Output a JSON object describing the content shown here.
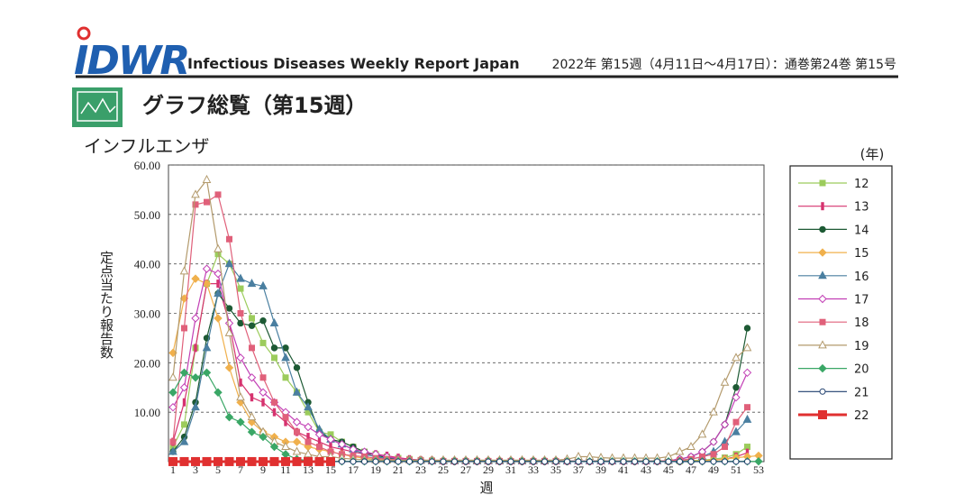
{
  "header": {
    "logo": "IDWR",
    "subtitle": "Infectious Diseases Weekly Report Japan",
    "issue": "2022年 第15週（4月11日～4月17日）：通巻第24巻 第15号"
  },
  "section_title": "グラフ総覧（第15週）",
  "chart_data": {
    "type": "line",
    "title": "インフルエンザ",
    "ylabel": "定点当たり報告数",
    "xlabel": "週",
    "legend_title": "(年)",
    "legend": "right",
    "grid": true,
    "categories": [
      1,
      null,
      3,
      null,
      5,
      null,
      7,
      null,
      9,
      null,
      11,
      null,
      13,
      null,
      15,
      null,
      17,
      null,
      19,
      null,
      21,
      null,
      23,
      null,
      25,
      null,
      27,
      null,
      29,
      null,
      31,
      null,
      33,
      null,
      35,
      null,
      37,
      null,
      39,
      null,
      41,
      null,
      43,
      null,
      45,
      null,
      47,
      null,
      49,
      null,
      51,
      null,
      53
    ],
    "ylim": [
      0,
      60
    ],
    "yticks": [
      {
        "value": 10,
        "label": "10.00"
      },
      {
        "value": 20,
        "label": "20.00"
      },
      {
        "value": 30,
        "label": "30.00"
      },
      {
        "value": 40,
        "label": "40.00"
      },
      {
        "value": 50,
        "label": "50.00"
      },
      {
        "value": 60,
        "label": "60.00"
      }
    ],
    "series": [
      {
        "name": "12",
        "color": "#9ccc5c",
        "marker": "square",
        "values": [
          3,
          7.5,
          23,
          36,
          42,
          40,
          35,
          29,
          24,
          21,
          17,
          14,
          10,
          6,
          5.5,
          4,
          3,
          2,
          1.5,
          1,
          0.7,
          0.5,
          0.3,
          0.2,
          0.1,
          0.1,
          0.1,
          0.1,
          0.1,
          0.1,
          0.1,
          0.1,
          0.1,
          0.1,
          0.1,
          0.1,
          0.1,
          0.1,
          0.1,
          0.1,
          0.1,
          0.1,
          0.1,
          0.1,
          0.1,
          0.1,
          0.2,
          0.3,
          0.5,
          0.8,
          1.5,
          3,
          null
        ]
      },
      {
        "name": "13",
        "color": "#d6336f",
        "marker": "bar",
        "values": [
          4,
          12,
          23,
          36,
          36,
          28,
          16,
          13,
          12,
          10,
          8,
          6,
          5,
          4,
          3,
          2.5,
          2,
          1.5,
          1.5,
          1.2,
          0.8,
          0.5,
          0.3,
          0.2,
          0.1,
          0.1,
          0.1,
          0.1,
          0.1,
          0.1,
          0.1,
          0.1,
          0.1,
          0.1,
          0.1,
          0.1,
          0.1,
          0.1,
          0.1,
          0.1,
          0.1,
          0.1,
          0.1,
          0.1,
          0.1,
          0.1,
          0.1,
          0.2,
          0.3,
          0.5,
          1,
          1.8,
          null
        ]
      },
      {
        "name": "14",
        "color": "#1d5a34",
        "marker": "circle",
        "values": [
          2,
          5,
          12,
          25,
          34,
          31,
          28,
          27.5,
          28.5,
          23,
          23,
          19,
          12,
          6,
          4.5,
          4,
          3,
          2,
          1.3,
          0.8,
          0.5,
          0.3,
          0.2,
          0.2,
          0.1,
          0.1,
          0.1,
          0.1,
          0.1,
          0.1,
          0.1,
          0.1,
          0.1,
          0.1,
          0.1,
          0.1,
          0.1,
          0.1,
          0.1,
          0.1,
          0.1,
          0.1,
          0.1,
          0.1,
          0.2,
          0.5,
          1,
          2,
          4,
          7.5,
          15,
          27,
          null
        ]
      },
      {
        "name": "15",
        "color": "#f0b04c",
        "marker": "diamond",
        "values": [
          22,
          33,
          37,
          36,
          29,
          19,
          12,
          8,
          6,
          5,
          4,
          4,
          3,
          2.5,
          2,
          1.5,
          1,
          0.7,
          0.5,
          0.3,
          0.2,
          0.2,
          0.1,
          0.1,
          0.1,
          0.1,
          0.1,
          0.1,
          0.1,
          0.1,
          0.1,
          0.1,
          0.1,
          0.1,
          0.1,
          0.1,
          0.1,
          0.1,
          0.1,
          0.1,
          0.1,
          0.1,
          0.1,
          0.1,
          0.1,
          0.1,
          0.1,
          0.2,
          0.3,
          0.5,
          0.8,
          1,
          1.2
        ]
      },
      {
        "name": "16",
        "color": "#4a7fa0",
        "marker": "triangle",
        "values": [
          2,
          4,
          11,
          23,
          34,
          40,
          37,
          36,
          35.5,
          28,
          21,
          14,
          11,
          6.5,
          4.5,
          3.5,
          2.5,
          1.5,
          1,
          0.6,
          0.4,
          0.3,
          0.2,
          0.1,
          0.1,
          0.1,
          0.1,
          0.1,
          0.1,
          0.1,
          0.1,
          0.1,
          0.1,
          0.1,
          0.1,
          0.1,
          0.1,
          0.1,
          0.1,
          0.1,
          0.1,
          0.1,
          0.1,
          0.1,
          0.2,
          0.3,
          0.5,
          1,
          2,
          4,
          6,
          8.5,
          null
        ]
      },
      {
        "name": "17",
        "color": "#c23fb5",
        "marker": "diamond-open",
        "values": [
          11,
          15,
          29,
          39,
          38,
          28,
          21,
          17,
          14,
          12,
          10,
          8,
          7,
          5.5,
          4.5,
          3.5,
          2.5,
          2,
          1.5,
          1,
          0.6,
          0.4,
          0.3,
          0.2,
          0.1,
          0.1,
          0.1,
          0.1,
          0.1,
          0.1,
          0.1,
          0.1,
          0.1,
          0.1,
          0.1,
          0.1,
          0.1,
          0.1,
          0.1,
          0.1,
          0.1,
          0.1,
          0.1,
          0.1,
          0.2,
          0.5,
          1,
          2,
          4,
          7.5,
          13,
          18,
          null
        ]
      },
      {
        "name": "18",
        "color": "#e0607a",
        "marker": "square",
        "values": [
          4,
          27,
          52,
          52.5,
          54,
          45,
          30,
          23,
          17,
          12,
          9,
          6,
          4,
          3,
          2,
          1.5,
          1.2,
          1,
          0.7,
          0.5,
          0.4,
          0.3,
          0.2,
          0.1,
          0.1,
          0.1,
          0.1,
          0.1,
          0.1,
          0.1,
          0.1,
          0.1,
          0.1,
          0.1,
          0.1,
          0.1,
          0.1,
          0.1,
          0.1,
          0.1,
          0.1,
          0.1,
          0.1,
          0.1,
          0.2,
          0.3,
          0.5,
          1,
          1.5,
          3,
          8,
          11,
          null
        ]
      },
      {
        "name": "19",
        "color": "#b39a6c",
        "marker": "triangle-open",
        "values": [
          17,
          38.5,
          54,
          57,
          43,
          26,
          13,
          9,
          6,
          4,
          3,
          2,
          1.5,
          1,
          1,
          0.7,
          0.5,
          0.4,
          0.3,
          0.3,
          0.3,
          0.3,
          0.3,
          0.3,
          0.3,
          0.3,
          0.3,
          0.3,
          0.3,
          0.3,
          0.3,
          0.3,
          0.3,
          0.3,
          0.3,
          0.5,
          1,
          1,
          0.8,
          0.7,
          0.7,
          0.7,
          0.7,
          0.7,
          1,
          2,
          3,
          5.5,
          10,
          16,
          21,
          23,
          null
        ]
      },
      {
        "name": "20",
        "color": "#3aa766",
        "marker": "diamond",
        "values": [
          14,
          18,
          17,
          18,
          14,
          9,
          8,
          6,
          5,
          3,
          1.5,
          0.5,
          0.2,
          0.1,
          0.05,
          0.05,
          0.05,
          0.05,
          0.05,
          0.05,
          0.05,
          0.05,
          0.05,
          0.05,
          0.05,
          0.05,
          0.05,
          0.05,
          0.05,
          0.05,
          0.05,
          0.05,
          0.05,
          0.05,
          0.05,
          0.05,
          0.05,
          0.05,
          0.05,
          0.05,
          0.05,
          0.05,
          0.05,
          0.05,
          0.05,
          0.05,
          0.05,
          0.05,
          0.05,
          0.05,
          0.05,
          0.05,
          0.05
        ]
      },
      {
        "name": "21",
        "color": "#1f3f6e",
        "marker": "circle-open",
        "values": [
          0.01,
          0.01,
          0.01,
          0.01,
          0.01,
          0.01,
          0.01,
          0.01,
          0.01,
          0.01,
          0.01,
          0.01,
          0.01,
          0.01,
          0.01,
          0.01,
          0.01,
          0.01,
          0.01,
          0.01,
          0.01,
          0.01,
          0.01,
          0.01,
          0.01,
          0.01,
          0.01,
          0.01,
          0.01,
          0.01,
          0.01,
          0.01,
          0.01,
          0.01,
          0.01,
          0.01,
          0.01,
          0.01,
          0.01,
          0.01,
          0.01,
          0.01,
          0.01,
          0.01,
          0.01,
          0.01,
          0.01,
          0.01,
          0.01,
          0.01,
          0.01,
          0.01,
          null
        ]
      },
      {
        "name": "22",
        "color": "#e03030",
        "marker": "square-big",
        "values": [
          0.01,
          0.01,
          0.01,
          0.01,
          0.01,
          0.01,
          0.01,
          0.01,
          0.01,
          0.01,
          0.01,
          0.01,
          0.01,
          0.01,
          0.01,
          null,
          null,
          null,
          null,
          null,
          null,
          null,
          null,
          null,
          null,
          null,
          null,
          null,
          null,
          null,
          null,
          null,
          null,
          null,
          null,
          null,
          null,
          null,
          null,
          null,
          null,
          null,
          null,
          null,
          null,
          null,
          null,
          null,
          null,
          null,
          null,
          null,
          null
        ]
      }
    ]
  }
}
